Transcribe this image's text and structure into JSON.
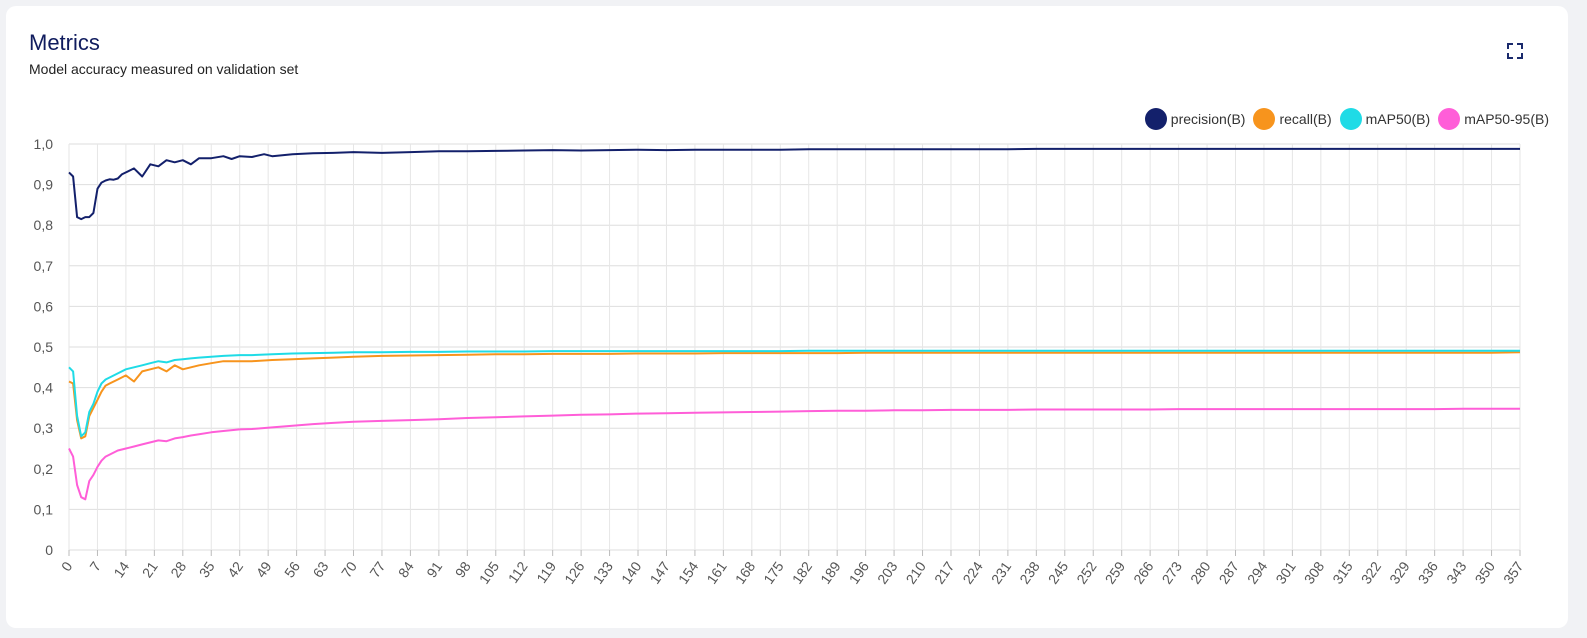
{
  "card": {
    "title": "Metrics",
    "subtitle": "Model accuracy measured on validation set",
    "expand_icon": "expand-icon"
  },
  "chart_data": {
    "type": "line",
    "title": "Metrics",
    "subtitle": "Model accuracy measured on validation set",
    "xlabel": "",
    "ylabel": "",
    "xlim": [
      0,
      357
    ],
    "ylim": [
      0,
      1
    ],
    "y_ticks": [
      0,
      0.1,
      0.2,
      0.3,
      0.4,
      0.5,
      0.6,
      0.7,
      0.8,
      0.9,
      1.0
    ],
    "y_tick_labels": [
      "0",
      "0,1",
      "0,2",
      "0,3",
      "0,4",
      "0,5",
      "0,6",
      "0,7",
      "0,8",
      "0,9",
      "1,0"
    ],
    "x_ticks": [
      0,
      7,
      14,
      21,
      28,
      35,
      42,
      49,
      56,
      63,
      70,
      77,
      84,
      91,
      98,
      105,
      112,
      119,
      126,
      133,
      140,
      147,
      154,
      161,
      168,
      175,
      182,
      189,
      196,
      203,
      210,
      217,
      224,
      231,
      238,
      245,
      252,
      259,
      266,
      273,
      280,
      287,
      294,
      301,
      308,
      315,
      322,
      329,
      336,
      343,
      350,
      357
    ],
    "grid": true,
    "legend_position": "top-right",
    "series": [
      {
        "name": "precision(B)",
        "color": "#13206b",
        "x": [
          0,
          1,
          2,
          3,
          4,
          5,
          6,
          7,
          8,
          9,
          10,
          11,
          12,
          13,
          14,
          16,
          18,
          20,
          22,
          24,
          26,
          28,
          30,
          32,
          35,
          38,
          40,
          42,
          45,
          48,
          50,
          55,
          60,
          65,
          70,
          77,
          84,
          91,
          98,
          105,
          112,
          119,
          126,
          133,
          140,
          147,
          154,
          161,
          168,
          175,
          182,
          189,
          196,
          203,
          210,
          217,
          224,
          231,
          238,
          245,
          252,
          259,
          266,
          273,
          280,
          287,
          294,
          301,
          308,
          315,
          322,
          329,
          336,
          343,
          350,
          357
        ],
        "values": [
          0.93,
          0.92,
          0.82,
          0.815,
          0.82,
          0.82,
          0.83,
          0.89,
          0.905,
          0.91,
          0.913,
          0.912,
          0.915,
          0.925,
          0.93,
          0.94,
          0.92,
          0.95,
          0.945,
          0.96,
          0.955,
          0.96,
          0.95,
          0.965,
          0.965,
          0.97,
          0.963,
          0.97,
          0.968,
          0.975,
          0.97,
          0.975,
          0.977,
          0.978,
          0.98,
          0.978,
          0.98,
          0.982,
          0.982,
          0.983,
          0.984,
          0.985,
          0.984,
          0.985,
          0.986,
          0.985,
          0.986,
          0.986,
          0.986,
          0.986,
          0.987,
          0.987,
          0.987,
          0.987,
          0.987,
          0.987,
          0.987,
          0.987,
          0.988,
          0.988,
          0.988,
          0.988,
          0.988,
          0.988,
          0.988,
          0.988,
          0.988,
          0.988,
          0.988,
          0.988,
          0.988,
          0.988,
          0.988,
          0.988,
          0.988,
          0.988
        ]
      },
      {
        "name": "recall(B)",
        "color": "#f7941d",
        "x": [
          0,
          1,
          2,
          3,
          4,
          5,
          6,
          7,
          8,
          9,
          10,
          12,
          14,
          16,
          18,
          20,
          22,
          24,
          26,
          28,
          30,
          32,
          35,
          38,
          42,
          45,
          50,
          55,
          60,
          65,
          70,
          77,
          84,
          91,
          98,
          105,
          112,
          119,
          126,
          133,
          140,
          147,
          154,
          161,
          168,
          175,
          182,
          189,
          196,
          203,
          210,
          217,
          224,
          231,
          238,
          245,
          252,
          259,
          266,
          273,
          280,
          287,
          294,
          301,
          308,
          315,
          322,
          329,
          336,
          343,
          350,
          357
        ],
        "values": [
          0.415,
          0.41,
          0.32,
          0.275,
          0.28,
          0.33,
          0.35,
          0.37,
          0.39,
          0.405,
          0.41,
          0.42,
          0.43,
          0.415,
          0.44,
          0.445,
          0.45,
          0.44,
          0.455,
          0.445,
          0.45,
          0.455,
          0.46,
          0.465,
          0.465,
          0.465,
          0.468,
          0.47,
          0.472,
          0.474,
          0.476,
          0.478,
          0.479,
          0.48,
          0.481,
          0.482,
          0.482,
          0.483,
          0.483,
          0.483,
          0.484,
          0.484,
          0.484,
          0.485,
          0.485,
          0.485,
          0.485,
          0.485,
          0.486,
          0.486,
          0.486,
          0.486,
          0.486,
          0.486,
          0.486,
          0.486,
          0.486,
          0.486,
          0.486,
          0.486,
          0.486,
          0.486,
          0.486,
          0.486,
          0.486,
          0.486,
          0.486,
          0.486,
          0.486,
          0.486,
          0.486,
          0.487
        ]
      },
      {
        "name": "mAP50(B)",
        "color": "#1fdbe6",
        "x": [
          0,
          1,
          2,
          3,
          4,
          5,
          6,
          7,
          8,
          9,
          10,
          12,
          14,
          16,
          18,
          20,
          22,
          24,
          26,
          28,
          30,
          32,
          35,
          38,
          42,
          45,
          50,
          55,
          60,
          65,
          70,
          77,
          84,
          91,
          98,
          105,
          112,
          119,
          126,
          133,
          140,
          147,
          154,
          161,
          168,
          175,
          182,
          189,
          196,
          203,
          210,
          217,
          224,
          231,
          238,
          245,
          252,
          259,
          266,
          273,
          280,
          287,
          294,
          301,
          308,
          315,
          322,
          329,
          336,
          343,
          350,
          357
        ],
        "values": [
          0.45,
          0.44,
          0.33,
          0.28,
          0.29,
          0.34,
          0.36,
          0.39,
          0.41,
          0.42,
          0.425,
          0.435,
          0.445,
          0.45,
          0.455,
          0.46,
          0.465,
          0.462,
          0.468,
          0.47,
          0.472,
          0.474,
          0.476,
          0.478,
          0.48,
          0.48,
          0.482,
          0.484,
          0.485,
          0.486,
          0.487,
          0.487,
          0.488,
          0.488,
          0.489,
          0.489,
          0.489,
          0.49,
          0.49,
          0.49,
          0.49,
          0.49,
          0.49,
          0.49,
          0.49,
          0.49,
          0.491,
          0.491,
          0.491,
          0.491,
          0.491,
          0.491,
          0.491,
          0.491,
          0.491,
          0.491,
          0.491,
          0.491,
          0.491,
          0.491,
          0.491,
          0.491,
          0.491,
          0.491,
          0.491,
          0.491,
          0.491,
          0.491,
          0.491,
          0.491,
          0.491,
          0.491
        ]
      },
      {
        "name": "mAP50-95(B)",
        "color": "#ff5ed8",
        "x": [
          0,
          1,
          2,
          3,
          4,
          5,
          6,
          7,
          8,
          9,
          10,
          12,
          14,
          16,
          18,
          20,
          22,
          24,
          26,
          28,
          30,
          32,
          35,
          38,
          42,
          45,
          50,
          55,
          60,
          65,
          70,
          77,
          84,
          91,
          98,
          105,
          112,
          119,
          126,
          133,
          140,
          147,
          154,
          161,
          168,
          175,
          182,
          189,
          196,
          203,
          210,
          217,
          224,
          231,
          238,
          245,
          252,
          259,
          266,
          273,
          280,
          287,
          294,
          301,
          308,
          315,
          322,
          329,
          336,
          343,
          350,
          357
        ],
        "values": [
          0.25,
          0.23,
          0.16,
          0.13,
          0.125,
          0.17,
          0.185,
          0.205,
          0.22,
          0.23,
          0.235,
          0.245,
          0.25,
          0.255,
          0.26,
          0.265,
          0.27,
          0.268,
          0.275,
          0.278,
          0.282,
          0.285,
          0.29,
          0.293,
          0.297,
          0.298,
          0.302,
          0.306,
          0.31,
          0.313,
          0.316,
          0.318,
          0.32,
          0.322,
          0.325,
          0.327,
          0.329,
          0.331,
          0.333,
          0.334,
          0.336,
          0.337,
          0.338,
          0.339,
          0.34,
          0.341,
          0.342,
          0.343,
          0.343,
          0.344,
          0.344,
          0.345,
          0.345,
          0.345,
          0.346,
          0.346,
          0.346,
          0.346,
          0.346,
          0.347,
          0.347,
          0.347,
          0.347,
          0.347,
          0.347,
          0.347,
          0.347,
          0.347,
          0.347,
          0.348,
          0.348,
          0.348
        ]
      }
    ]
  }
}
